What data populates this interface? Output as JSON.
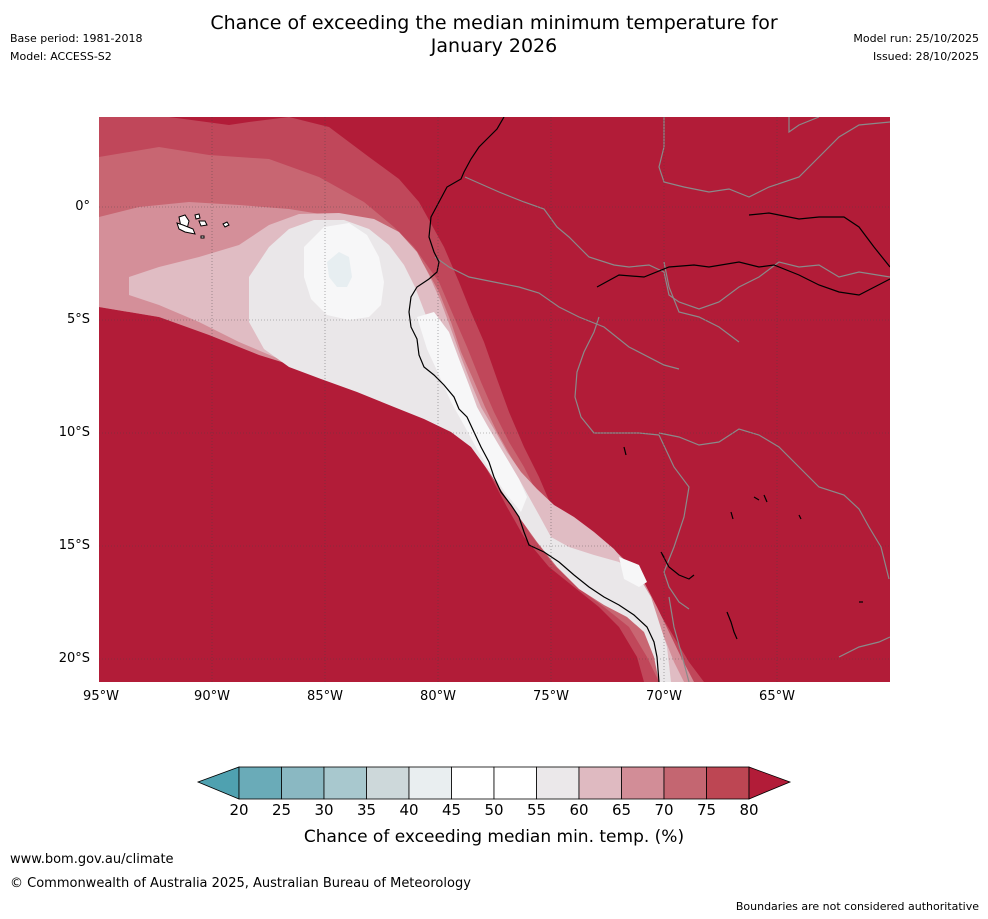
{
  "header": {
    "title_line1": "Chance of exceeding the median minimum temperature for",
    "title_line2": "January 2026",
    "base_period": "Base period: 1981-2018",
    "model": "Model: ACCESS-S2",
    "model_run": "Model run: 25/10/2025",
    "issued": "Issued: 28/10/2025"
  },
  "map": {
    "lat_labels": [
      "0°",
      "5°S",
      "10°S",
      "15°S",
      "20°S"
    ],
    "lon_labels": [
      "95°W",
      "90°W",
      "85°W",
      "80°W",
      "75°W",
      "70°W",
      "65°W"
    ],
    "dominant_fill": "#b21c38"
  },
  "colorbar": {
    "ticks": [
      "20",
      "25",
      "30",
      "35",
      "40",
      "45",
      "50",
      "55",
      "60",
      "65",
      "70",
      "75",
      "80"
    ],
    "colors": [
      "#6aabb8",
      "#8ab8c2",
      "#a8c8ce",
      "#cdd8da",
      "#e9eef0",
      "#ffffff",
      "#ffffff",
      "#ebe8ea",
      "#dfbac1",
      "#d28d97",
      "#c46671",
      "#bd4653"
    ],
    "low_color": "#4fa1b0",
    "high_color": "#b21c38",
    "title": "Chance of exceeding median min. temp. (%)"
  },
  "footer": {
    "website": "www.bom.gov.au/climate",
    "copyright": "© Commonwealth of Australia 2025, Australian Bureau of Meteorology",
    "disclaimer": "Boundaries are not considered authoritative"
  }
}
